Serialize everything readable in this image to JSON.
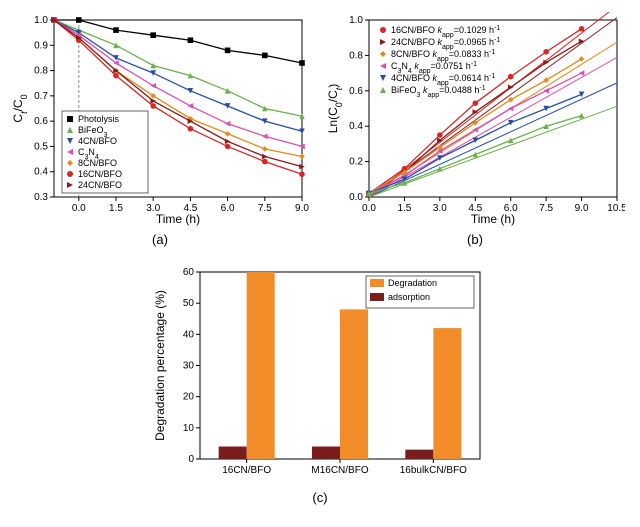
{
  "panelA": {
    "type": "line",
    "xlabel": "Time (h)",
    "ylabel": "Ct/C0",
    "ylabel_html": "C<tspan font-style='italic' baseline-shift='sub' font-size='9'>t</tspan>/C<tspan baseline-shift='sub' font-size='9'>0</tspan>",
    "xlim": [
      -1.0,
      9.0
    ],
    "ylim": [
      0.3,
      1.0
    ],
    "xticks": [
      0.0,
      1.5,
      3.0,
      4.5,
      6.0,
      7.5,
      9.0
    ],
    "yticks": [
      0.3,
      0.4,
      0.5,
      0.6,
      0.7,
      0.8,
      0.9,
      1.0
    ],
    "time": [
      -1.0,
      0.0,
      1.5,
      3.0,
      4.5,
      6.0,
      7.5,
      9.0
    ],
    "dash_x": 0.0,
    "series": [
      {
        "name": "Photolysis",
        "color": "#000000",
        "marker": "square",
        "values": [
          1.0,
          1.0,
          0.96,
          0.94,
          0.92,
          0.88,
          0.86,
          0.83
        ]
      },
      {
        "name": "BiFeO3",
        "color": "#6ab04c",
        "marker": "triangle",
        "values": [
          1.0,
          0.96,
          0.9,
          0.82,
          0.78,
          0.72,
          0.65,
          0.62
        ]
      },
      {
        "name": "4CN/BFO",
        "color": "#264fa3",
        "marker": "triangle-down",
        "values": [
          1.0,
          0.95,
          0.85,
          0.79,
          0.72,
          0.66,
          0.6,
          0.56
        ]
      },
      {
        "name": "C3N4",
        "color": "#d84fb7",
        "marker": "triangle-left",
        "values": [
          1.0,
          0.94,
          0.83,
          0.74,
          0.66,
          0.59,
          0.54,
          0.5
        ]
      },
      {
        "name": "8CN/BFO",
        "color": "#e38a1d",
        "marker": "diamond",
        "values": [
          1.0,
          0.93,
          0.8,
          0.7,
          0.61,
          0.55,
          0.49,
          0.46
        ]
      },
      {
        "name": "16CN/BFO",
        "color": "#d92626",
        "marker": "circle",
        "values": [
          1.0,
          0.92,
          0.78,
          0.66,
          0.57,
          0.5,
          0.44,
          0.39
        ]
      },
      {
        "name": "24CN/BFO",
        "color": "#8a1b1b",
        "marker": "triangle-right",
        "values": [
          1.0,
          0.93,
          0.8,
          0.68,
          0.6,
          0.52,
          0.46,
          0.42
        ]
      }
    ],
    "label_fontsize": 12,
    "background": "#ffffff",
    "border_color": "#000000",
    "sub": "(a)"
  },
  "panelB": {
    "type": "line",
    "xlabel": "Time (h)",
    "ylabel": "Ln(C0/Ct)",
    "ylabel_html": "Ln(C<tspan baseline-shift='sub' font-size='9'>0</tspan>/C<tspan font-style='italic' baseline-shift='sub' font-size='9'>t</tspan>)",
    "xlim": [
      0.0,
      10.5
    ],
    "ylim": [
      0.0,
      1.0
    ],
    "xticks": [
      0.0,
      1.5,
      3.0,
      4.5,
      6.0,
      7.5,
      9.0,
      10.5
    ],
    "yticks": [
      0.0,
      0.2,
      0.4,
      0.6,
      0.8,
      1.0
    ],
    "time": [
      0.0,
      1.5,
      3.0,
      4.5,
      6.0,
      7.5,
      9.0
    ],
    "series": [
      {
        "name": "16CN/BFO",
        "k": "0.1029",
        "color": "#d92626",
        "marker": "circle",
        "values": [
          0.02,
          0.16,
          0.35,
          0.53,
          0.68,
          0.82,
          0.95
        ]
      },
      {
        "name": "24CN/BFO",
        "k": "0.0965",
        "color": "#8a1b1b",
        "marker": "triangle-right",
        "values": [
          0.02,
          0.14,
          0.32,
          0.48,
          0.62,
          0.76,
          0.88
        ]
      },
      {
        "name": "8CN/BFO",
        "k": "0.0833",
        "color": "#e38a1d",
        "marker": "diamond",
        "values": [
          0.02,
          0.14,
          0.28,
          0.42,
          0.55,
          0.66,
          0.78
        ]
      },
      {
        "name": "C3N4",
        "k": "0.0751",
        "color": "#d84fb7",
        "marker": "triangle-left",
        "values": [
          0.02,
          0.12,
          0.26,
          0.38,
          0.5,
          0.6,
          0.7
        ]
      },
      {
        "name": "4CN/BFO",
        "k": "0.0614",
        "color": "#264fa3",
        "marker": "triangle-down",
        "values": [
          0.02,
          0.1,
          0.22,
          0.32,
          0.42,
          0.5,
          0.58
        ]
      },
      {
        "name": "BiFeO3",
        "k": "0.0488",
        "color": "#6ab04c",
        "marker": "triangle",
        "values": [
          0.02,
          0.08,
          0.16,
          0.24,
          0.32,
          0.4,
          0.46
        ]
      }
    ],
    "label_fontsize": 12,
    "background": "#ffffff",
    "border_color": "#000000",
    "sub": "(b)"
  },
  "panelC": {
    "type": "grouped-bar",
    "xlabel": "",
    "ylabel": "Degradation percentage (%)",
    "xlim": [
      0,
      3
    ],
    "ylim": [
      0,
      60
    ],
    "yticks": [
      0,
      10,
      20,
      30,
      40,
      50,
      60
    ],
    "categories": [
      "16CN/BFO",
      "M16CN/BFO",
      "16bulkCN/BFO"
    ],
    "groups": [
      {
        "name": "Degradation",
        "color": "#f28c28",
        "values": [
          60,
          48,
          42
        ]
      },
      {
        "name": "adsorption",
        "color": "#7a1c1c",
        "values": [
          4,
          4,
          3
        ]
      }
    ],
    "bar_width": 0.3,
    "label_fontsize": 12,
    "background": "#ffffff",
    "border_color": "#000000",
    "sub": "(c)"
  }
}
